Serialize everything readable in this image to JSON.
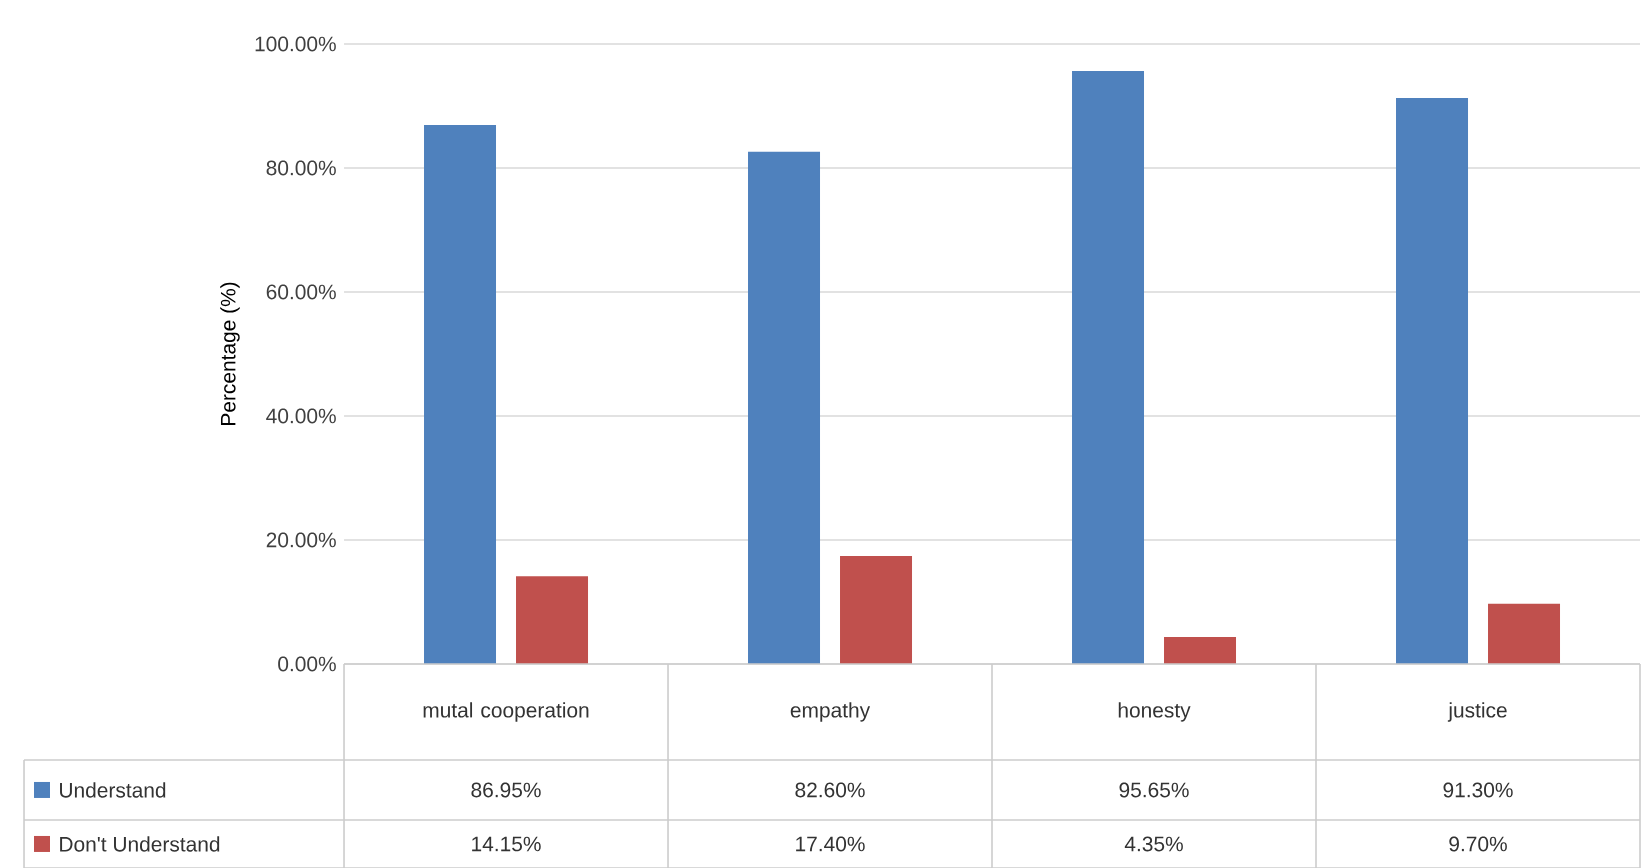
{
  "chart_data": {
    "type": "bar",
    "ylabel": "Percentage (%)",
    "categories": [
      "mutal cooperation",
      "empathy",
      "honesty",
      "justice"
    ],
    "series": [
      {
        "name": "Understand",
        "color": "#4f81bd",
        "values": [
          86.95,
          82.6,
          95.65,
          91.3
        ],
        "value_labels": [
          "86.95%",
          "82.60%",
          "95.65%",
          "91.30%"
        ]
      },
      {
        "name": "Don't Understand",
        "color": "#c0504d",
        "values": [
          14.15,
          17.4,
          4.35,
          9.7
        ],
        "value_labels": [
          "14.15%",
          "17.40%",
          "4.35%",
          "9.70%"
        ]
      }
    ],
    "ylim": [
      0,
      100
    ],
    "yticks": [
      {
        "value": 0,
        "label": "0.00%"
      },
      {
        "value": 20,
        "label": "20.00%"
      },
      {
        "value": 40,
        "label": "40.00%"
      },
      {
        "value": 60,
        "label": "60.00%"
      },
      {
        "value": 80,
        "label": "80.00%"
      },
      {
        "value": 100,
        "label": "100.00%"
      }
    ],
    "grid": "y",
    "legend": "bottom"
  }
}
